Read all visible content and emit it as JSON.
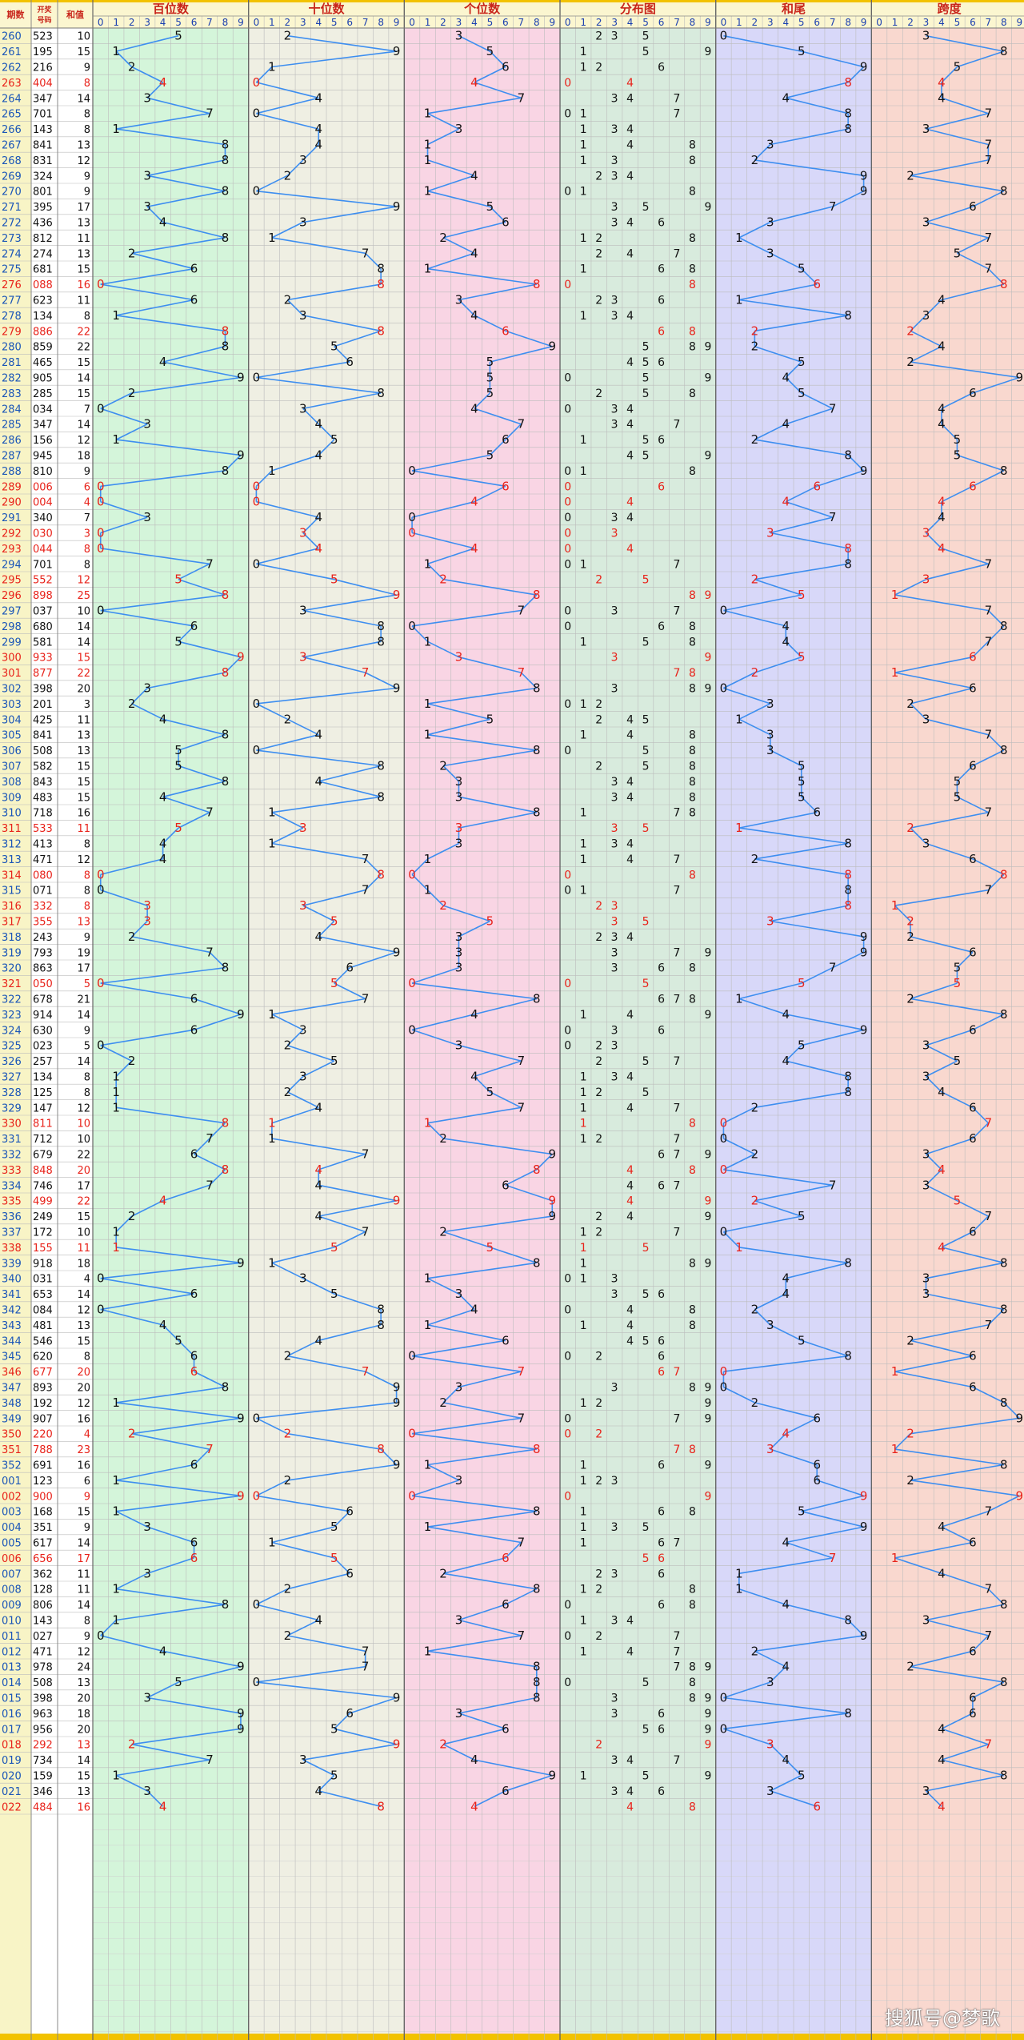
{
  "chart_data": {
    "type": "table",
    "title": "",
    "columns": {
      "period": "期数",
      "number": "开奖号码",
      "sum": "和值"
    },
    "sections": [
      {
        "key": "hundreds",
        "label": "百位数",
        "bg": "#d4f5da"
      },
      {
        "key": "tens",
        "label": "十位数",
        "bg": "#efefe3"
      },
      {
        "key": "units",
        "label": "个位数",
        "bg": "#f9d5e4"
      },
      {
        "key": "distribution",
        "label": "分布图",
        "bg": "#d8ebdd"
      },
      {
        "key": "sum_tail",
        "label": "和尾",
        "bg": "#d8d8f9"
      },
      {
        "key": "span",
        "label": "跨度",
        "bg": "#f9d8cf"
      }
    ],
    "digit_labels": [
      "0",
      "1",
      "2",
      "3",
      "4",
      "5",
      "6",
      "7",
      "8",
      "9"
    ],
    "draws": [
      {
        "p": "260",
        "n": "523"
      },
      {
        "p": "261",
        "n": "195"
      },
      {
        "p": "262",
        "n": "216"
      },
      {
        "p": "263",
        "n": "404"
      },
      {
        "p": "264",
        "n": "347"
      },
      {
        "p": "265",
        "n": "701"
      },
      {
        "p": "266",
        "n": "143"
      },
      {
        "p": "267",
        "n": "841"
      },
      {
        "p": "268",
        "n": "831"
      },
      {
        "p": "269",
        "n": "324"
      },
      {
        "p": "270",
        "n": "801"
      },
      {
        "p": "271",
        "n": "395"
      },
      {
        "p": "272",
        "n": "436"
      },
      {
        "p": "273",
        "n": "812"
      },
      {
        "p": "274",
        "n": "274"
      },
      {
        "p": "275",
        "n": "681"
      },
      {
        "p": "276",
        "n": "088"
      },
      {
        "p": "277",
        "n": "623"
      },
      {
        "p": "278",
        "n": "134"
      },
      {
        "p": "279",
        "n": "886"
      },
      {
        "p": "280",
        "n": "859"
      },
      {
        "p": "281",
        "n": "465"
      },
      {
        "p": "282",
        "n": "905"
      },
      {
        "p": "283",
        "n": "285"
      },
      {
        "p": "284",
        "n": "034"
      },
      {
        "p": "285",
        "n": "347"
      },
      {
        "p": "286",
        "n": "156"
      },
      {
        "p": "287",
        "n": "945"
      },
      {
        "p": "288",
        "n": "810"
      },
      {
        "p": "289",
        "n": "006"
      },
      {
        "p": "290",
        "n": "004"
      },
      {
        "p": "291",
        "n": "340"
      },
      {
        "p": "292",
        "n": "030"
      },
      {
        "p": "293",
        "n": "044"
      },
      {
        "p": "294",
        "n": "701"
      },
      {
        "p": "295",
        "n": "552"
      },
      {
        "p": "296",
        "n": "898"
      },
      {
        "p": "297",
        "n": "037"
      },
      {
        "p": "298",
        "n": "680"
      },
      {
        "p": "299",
        "n": "581"
      },
      {
        "p": "300",
        "n": "933"
      },
      {
        "p": "301",
        "n": "877"
      },
      {
        "p": "302",
        "n": "398"
      },
      {
        "p": "303",
        "n": "201"
      },
      {
        "p": "304",
        "n": "425"
      },
      {
        "p": "305",
        "n": "841"
      },
      {
        "p": "306",
        "n": "508"
      },
      {
        "p": "307",
        "n": "582"
      },
      {
        "p": "308",
        "n": "843"
      },
      {
        "p": "309",
        "n": "483"
      },
      {
        "p": "310",
        "n": "718"
      },
      {
        "p": "311",
        "n": "533"
      },
      {
        "p": "312",
        "n": "413"
      },
      {
        "p": "313",
        "n": "471"
      },
      {
        "p": "314",
        "n": "080"
      },
      {
        "p": "315",
        "n": "071"
      },
      {
        "p": "316",
        "n": "332"
      },
      {
        "p": "317",
        "n": "355"
      },
      {
        "p": "318",
        "n": "243"
      },
      {
        "p": "319",
        "n": "793"
      },
      {
        "p": "320",
        "n": "863"
      },
      {
        "p": "321",
        "n": "050"
      },
      {
        "p": "322",
        "n": "678"
      },
      {
        "p": "323",
        "n": "914"
      },
      {
        "p": "324",
        "n": "630"
      },
      {
        "p": "325",
        "n": "023"
      },
      {
        "p": "326",
        "n": "257"
      },
      {
        "p": "327",
        "n": "134"
      },
      {
        "p": "328",
        "n": "125"
      },
      {
        "p": "329",
        "n": "147"
      },
      {
        "p": "330",
        "n": "811"
      },
      {
        "p": "331",
        "n": "712"
      },
      {
        "p": "332",
        "n": "679"
      },
      {
        "p": "333",
        "n": "848"
      },
      {
        "p": "334",
        "n": "746"
      },
      {
        "p": "335",
        "n": "499"
      },
      {
        "p": "336",
        "n": "249"
      },
      {
        "p": "337",
        "n": "172"
      },
      {
        "p": "338",
        "n": "155"
      },
      {
        "p": "339",
        "n": "918"
      },
      {
        "p": "340",
        "n": "031"
      },
      {
        "p": "341",
        "n": "653"
      },
      {
        "p": "342",
        "n": "084"
      },
      {
        "p": "343",
        "n": "481"
      },
      {
        "p": "344",
        "n": "546"
      },
      {
        "p": "345",
        "n": "620"
      },
      {
        "p": "346",
        "n": "677"
      },
      {
        "p": "347",
        "n": "893"
      },
      {
        "p": "348",
        "n": "192"
      },
      {
        "p": "349",
        "n": "907"
      },
      {
        "p": "350",
        "n": "220"
      },
      {
        "p": "351",
        "n": "788"
      },
      {
        "p": "352",
        "n": "691"
      },
      {
        "p": "001",
        "n": "123"
      },
      {
        "p": "002",
        "n": "900"
      },
      {
        "p": "003",
        "n": "168"
      },
      {
        "p": "004",
        "n": "351"
      },
      {
        "p": "005",
        "n": "617"
      },
      {
        "p": "006",
        "n": "656"
      },
      {
        "p": "007",
        "n": "362"
      },
      {
        "p": "008",
        "n": "128"
      },
      {
        "p": "009",
        "n": "806"
      },
      {
        "p": "010",
        "n": "143"
      },
      {
        "p": "011",
        "n": "027"
      },
      {
        "p": "012",
        "n": "471"
      },
      {
        "p": "013",
        "n": "978"
      },
      {
        "p": "014",
        "n": "508"
      },
      {
        "p": "015",
        "n": "398"
      },
      {
        "p": "016",
        "n": "963"
      },
      {
        "p": "017",
        "n": "956"
      },
      {
        "p": "018",
        "n": "292"
      },
      {
        "p": "019",
        "n": "734"
      },
      {
        "p": "020",
        "n": "159"
      },
      {
        "p": "021",
        "n": "346"
      },
      {
        "p": "022",
        "n": "484"
      }
    ],
    "colors": {
      "line": "#3d8ef0",
      "highlight": "#e8221a",
      "text": "#111111",
      "period_text": "#1a55b8",
      "header_text": "#c8241a",
      "grid": "#bcbcbc",
      "yellow_bar": "#f2c200",
      "digit_header_bg": "#f9f6da"
    }
  },
  "watermark": "搜狐号@梦歌"
}
